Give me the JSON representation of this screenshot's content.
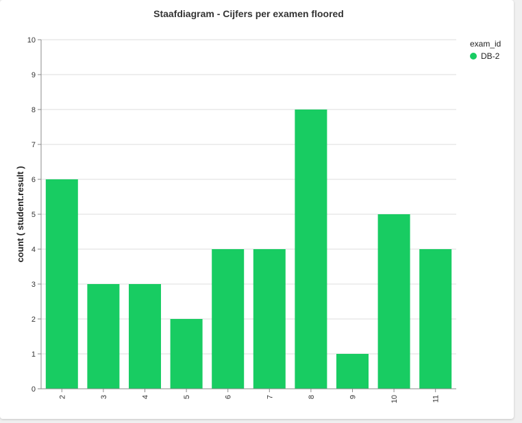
{
  "chart_data": {
    "type": "bar",
    "title": "Staafdiagram - Cijfers per examen floored",
    "xlabel": "",
    "ylabel": "count ( student.result )",
    "categories": [
      "2",
      "3",
      "4",
      "5",
      "6",
      "7",
      "8",
      "9",
      "10",
      "11"
    ],
    "series": [
      {
        "name": "DB-2",
        "values": [
          6,
          3,
          3,
          2,
          4,
          4,
          8,
          1,
          5,
          4
        ]
      }
    ],
    "ylim": [
      0,
      10
    ],
    "yticks": [
      "0",
      "1",
      "2",
      "3",
      "4",
      "5",
      "6",
      "7",
      "8",
      "9",
      "10"
    ],
    "grid": true,
    "legend": {
      "title": "exam_id",
      "position": "right"
    },
    "colors": {
      "bar": "#18cc62",
      "grid": "#dddddd",
      "axis": "#888888"
    }
  }
}
